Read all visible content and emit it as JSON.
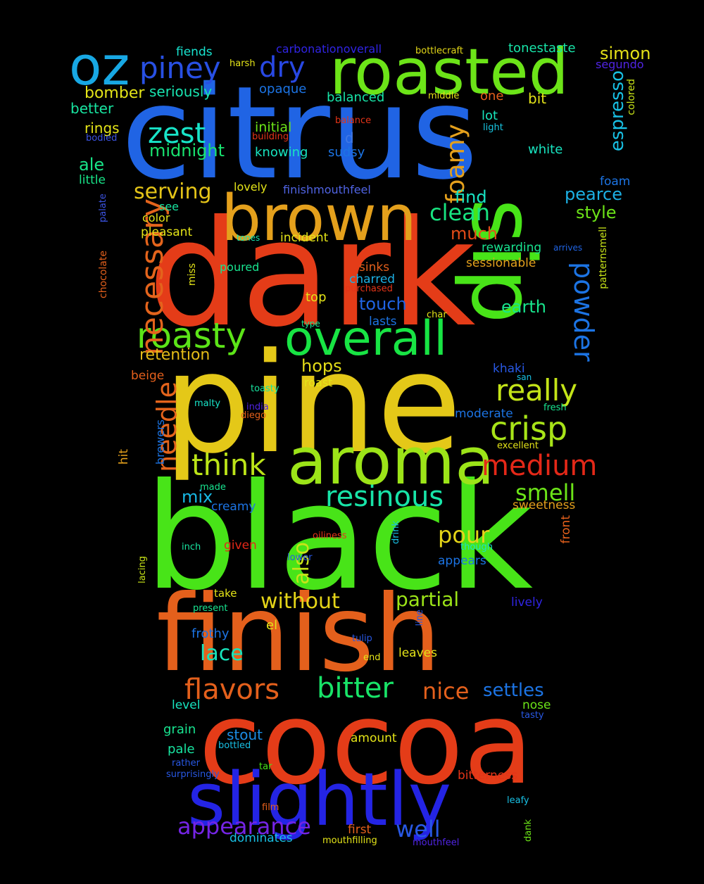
{
  "background": "#000000",
  "words": [
    {
      "text": "citrus",
      "color": "#2064e4"
    },
    {
      "text": "dark",
      "color": "#e43c18"
    },
    {
      "text": "pine",
      "color": "#e4c818"
    },
    {
      "text": "black",
      "color": "#48e418"
    },
    {
      "text": "finish",
      "color": "#e4601c"
    },
    {
      "text": "cocoa",
      "color": "#e43c18"
    },
    {
      "text": "sip",
      "color": "#48e418"
    },
    {
      "text": "slightly",
      "color": "#2424e4"
    },
    {
      "text": "roasted",
      "color": "#6ce418"
    },
    {
      "text": "brown",
      "color": "#e4a01c"
    },
    {
      "text": "aroma",
      "color": "#9ce418"
    },
    {
      "text": "overall",
      "color": "#18e444"
    },
    {
      "text": "oz",
      "color": "#18a8e4"
    },
    {
      "text": "roasty",
      "color": "#5ce418"
    },
    {
      "text": "necessary",
      "color": "#e4641c"
    },
    {
      "text": "piney",
      "color": "#2850e4"
    },
    {
      "text": "crisp",
      "color": "#a8e418"
    },
    {
      "text": "really",
      "color": "#c4e418"
    },
    {
      "text": "medium",
      "color": "#e42818"
    },
    {
      "text": "resinous",
      "color": "#18e4a8"
    },
    {
      "text": "think",
      "color": "#bce418"
    },
    {
      "text": "needle",
      "color": "#e4641c"
    },
    {
      "text": "powder",
      "color": "#1c74e4"
    },
    {
      "text": "bitter",
      "color": "#18e468"
    },
    {
      "text": "flavors",
      "color": "#e4601c"
    },
    {
      "text": "zest",
      "color": "#18e4c8"
    },
    {
      "text": "dry",
      "color": "#2848e4"
    },
    {
      "text": "foamy",
      "color": "#e4a01c"
    },
    {
      "text": "appearance",
      "color": "#7424e4"
    },
    {
      "text": "clean",
      "color": "#18e480"
    },
    {
      "text": "serving",
      "color": "#e4c418"
    },
    {
      "text": "without",
      "color": "#e4d418"
    },
    {
      "text": "partial",
      "color": "#9ce418"
    },
    {
      "text": "pour",
      "color": "#e4d418"
    },
    {
      "text": "smell",
      "color": "#6ce418"
    },
    {
      "text": "lace",
      "color": "#18e4bc"
    },
    {
      "text": "well",
      "color": "#2858e4"
    },
    {
      "text": "nice",
      "color": "#e4601c"
    },
    {
      "text": "settles",
      "color": "#1c74e4"
    },
    {
      "text": "also",
      "color": "#c8e418"
    },
    {
      "text": "espresso",
      "color": "#18c0e4"
    },
    {
      "text": "hops",
      "color": "#e4dc18"
    },
    {
      "text": "midnight",
      "color": "#18e470"
    },
    {
      "text": "retention",
      "color": "#e4bc18"
    },
    {
      "text": "ale",
      "color": "#18e488"
    },
    {
      "text": "mix",
      "color": "#18b8e4"
    },
    {
      "text": "stout",
      "color": "#1c8ce4"
    },
    {
      "text": "find",
      "color": "#18e4c4"
    },
    {
      "text": "much",
      "color": "#e44c18"
    },
    {
      "text": "earth",
      "color": "#18e48c"
    },
    {
      "text": "pearce",
      "color": "#1cb0e4"
    },
    {
      "text": "style",
      "color": "#6ce418"
    },
    {
      "text": "simon",
      "color": "#e4e018"
    },
    {
      "text": "touch",
      "color": "#2064e4"
    },
    {
      "text": "bomber",
      "color": "#e4e418"
    },
    {
      "text": "seriously",
      "color": "#18e4b0"
    },
    {
      "text": "better",
      "color": "#18e4a0"
    },
    {
      "text": "balanced",
      "color": "#18e4a8"
    },
    {
      "text": "tonestaste",
      "color": "#18e4a8"
    },
    {
      "text": "segundo",
      "color": "#5024e4"
    },
    {
      "text": "opaque",
      "color": "#1c74e4"
    },
    {
      "text": "fiends",
      "color": "#18e4d0"
    },
    {
      "text": "harsh",
      "color": "#e4e418"
    },
    {
      "text": "carbonationoverall",
      "color": "#3024e4"
    },
    {
      "text": "bottlecraft",
      "color": "#e4d818"
    },
    {
      "text": "middle",
      "color": "#e4e018"
    },
    {
      "text": "one",
      "color": "#e4601c"
    },
    {
      "text": "bit",
      "color": "#e4e418"
    },
    {
      "text": "colored",
      "color": "#c8e418"
    },
    {
      "text": "rings",
      "color": "#e4e418"
    },
    {
      "text": "initial",
      "color": "#6ce418"
    },
    {
      "text": "balance",
      "color": "#e43418"
    },
    {
      "text": "lot",
      "color": "#18e4bc"
    },
    {
      "text": "light",
      "color": "#18c8e4"
    },
    {
      "text": "bodied",
      "color": "#3c54e4"
    },
    {
      "text": "building",
      "color": "#e43418"
    },
    {
      "text": "d",
      "color": "#4078e4"
    },
    {
      "text": "knowing",
      "color": "#18e4c0"
    },
    {
      "text": "sudsy",
      "color": "#1c74e4"
    },
    {
      "text": "white",
      "color": "#18e4c0"
    },
    {
      "text": "foam",
      "color": "#1c74e4"
    },
    {
      "text": "little",
      "color": "#18e488"
    },
    {
      "text": "lovely",
      "color": "#e4e418"
    },
    {
      "text": "finishmouthfeel",
      "color": "#5064e4"
    },
    {
      "text": "see",
      "color": "#18e4a0"
    },
    {
      "text": "palate",
      "color": "#3c54e4"
    },
    {
      "text": "color",
      "color": "#e4e418"
    },
    {
      "text": "pleasant",
      "color": "#e4e418"
    },
    {
      "text": "tones",
      "color": "#18e4b0"
    },
    {
      "text": "incident",
      "color": "#e4e418"
    },
    {
      "text": "rewarding",
      "color": "#18e490"
    },
    {
      "text": "arrives",
      "color": "#2064e4"
    },
    {
      "text": "patternsmell",
      "color": "#c8e418"
    },
    {
      "text": "chocolate",
      "color": "#e4601c"
    },
    {
      "text": "miss",
      "color": "#e4e418"
    },
    {
      "text": "poured",
      "color": "#18e490"
    },
    {
      "text": "sessionable",
      "color": "#e4a01c"
    },
    {
      "text": "sinks",
      "color": "#e4601c"
    },
    {
      "text": "charred",
      "color": "#1cb0e4"
    },
    {
      "text": "purchased",
      "color": "#e43418"
    },
    {
      "text": "top",
      "color": "#e4e418"
    },
    {
      "text": "char",
      "color": "#e4e418"
    },
    {
      "text": "type",
      "color": "#18e490"
    },
    {
      "text": "lasts",
      "color": "#1c74e4"
    },
    {
      "text": "khaki",
      "color": "#2858e4"
    },
    {
      "text": "san",
      "color": "#18c0e4"
    },
    {
      "text": "beige",
      "color": "#e4601c"
    },
    {
      "text": "roast",
      "color": "#e4e418"
    },
    {
      "text": "toasty",
      "color": "#18e4a0"
    },
    {
      "text": "malty",
      "color": "#18e4c8"
    },
    {
      "text": "india",
      "color": "#5024e4"
    },
    {
      "text": "diego",
      "color": "#e4601c"
    },
    {
      "text": "fresh",
      "color": "#18e490"
    },
    {
      "text": "brewers",
      "color": "#1c74e4"
    },
    {
      "text": "moderate",
      "color": "#1c74e4"
    },
    {
      "text": "excellent",
      "color": "#e4e418"
    },
    {
      "text": "hit",
      "color": "#e4a01c"
    },
    {
      "text": "made",
      "color": "#18e490"
    },
    {
      "text": "creamy",
      "color": "#1c74e4"
    },
    {
      "text": "sweetness",
      "color": "#e4a01c"
    },
    {
      "text": "drink",
      "color": "#18c0e4"
    },
    {
      "text": "oiliness",
      "color": "#e43418"
    },
    {
      "text": "front",
      "color": "#e4601c"
    },
    {
      "text": "though",
      "color": "#18e4c8"
    },
    {
      "text": "inch",
      "color": "#18e4a0"
    },
    {
      "text": "given",
      "color": "#e42818"
    },
    {
      "text": "lower",
      "color": "#2858e4"
    },
    {
      "text": "appears",
      "color": "#1c74e4"
    },
    {
      "text": "lacing",
      "color": "#c8e418"
    },
    {
      "text": "take",
      "color": "#e4e418"
    },
    {
      "text": "present",
      "color": "#18e490"
    },
    {
      "text": "lively",
      "color": "#3024e4"
    },
    {
      "text": "line",
      "color": "#2858e4"
    },
    {
      "text": "el",
      "color": "#e4e418"
    },
    {
      "text": "frothy",
      "color": "#1c74e4"
    },
    {
      "text": "tulip",
      "color": "#2858e4"
    },
    {
      "text": "leaves",
      "color": "#e4e418"
    },
    {
      "text": "end",
      "color": "#e4e418"
    },
    {
      "text": "level",
      "color": "#18e4c0"
    },
    {
      "text": "nose",
      "color": "#6ce418"
    },
    {
      "text": "tasty",
      "color": "#2858e4"
    },
    {
      "text": "grain",
      "color": "#18e490"
    },
    {
      "text": "amount",
      "color": "#e4e418"
    },
    {
      "text": "pale",
      "color": "#18e4a0"
    },
    {
      "text": "bottled",
      "color": "#18c0e4"
    },
    {
      "text": "rather",
      "color": "#2858e4"
    },
    {
      "text": "tar",
      "color": "#48e418"
    },
    {
      "text": "surprisingly",
      "color": "#2858e4"
    },
    {
      "text": "bitterness",
      "color": "#e43418"
    },
    {
      "text": "leafy",
      "color": "#18c0e4"
    },
    {
      "text": "film",
      "color": "#e4601c"
    },
    {
      "text": "first",
      "color": "#e4601c"
    },
    {
      "text": "dank",
      "color": "#6ce418"
    },
    {
      "text": "dominates",
      "color": "#18c0e4"
    },
    {
      "text": "mouthfilling",
      "color": "#e4e418"
    },
    {
      "text": "mouthfeel",
      "color": "#5024e4"
    }
  ]
}
